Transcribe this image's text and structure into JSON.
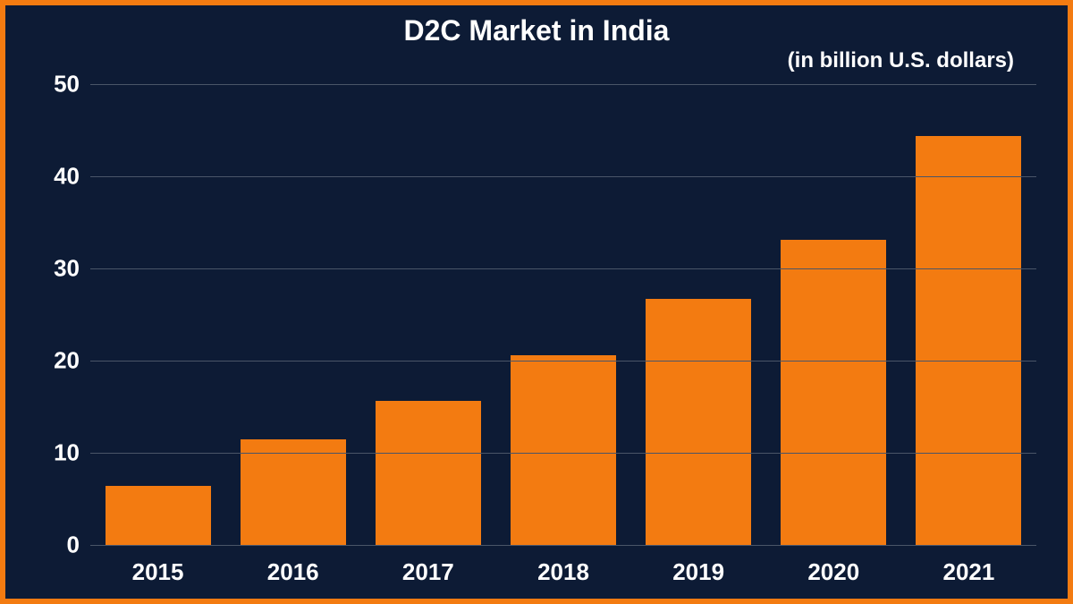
{
  "chart": {
    "type": "bar",
    "title": "D2C Market in India",
    "subtitle": "(in billion U.S. dollars)",
    "title_fontsize": 32,
    "subtitle_fontsize": 24,
    "categories": [
      "2015",
      "2016",
      "2017",
      "2018",
      "2019",
      "2020",
      "2021"
    ],
    "values": [
      6.4,
      11.5,
      15.6,
      20.6,
      26.7,
      33.1,
      44.4
    ],
    "ylim": [
      0,
      50
    ],
    "ytick_step": 10,
    "y_ticks": [
      0,
      10,
      20,
      30,
      40,
      50
    ],
    "y_label_fontsize": 26,
    "x_label_fontsize": 26,
    "bar_width": 0.78,
    "background_color": "#0d1b35",
    "border_color": "#f37b11",
    "border_width": 6,
    "bar_color": "#f37b11",
    "grid_color": "#4a5568",
    "text_color": "#ffffff",
    "title_color": "#ffffff"
  }
}
